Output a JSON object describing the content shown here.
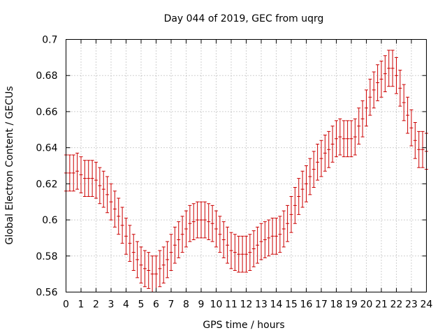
{
  "chart_data": {
    "type": "scatter",
    "title": "Day 044 of 2019, GEC from uqrg",
    "xlabel": "GPS time / hours",
    "ylabel": "Global Electron Content / GECUs",
    "xlim": [
      0,
      24
    ],
    "ylim": [
      0.56,
      0.7
    ],
    "grid": true,
    "x_ticks": [
      0,
      1,
      2,
      3,
      4,
      5,
      6,
      7,
      8,
      9,
      10,
      11,
      12,
      13,
      14,
      15,
      16,
      17,
      18,
      19,
      20,
      21,
      22,
      23,
      24
    ],
    "y_ticks": [
      "0.56",
      "0.58",
      "0.6",
      "0.62",
      "0.64",
      "0.66",
      "0.68",
      "0.7"
    ],
    "error": 0.01,
    "series": [
      {
        "color": "#cc0000",
        "points": [
          [
            0.0,
            0.626
          ],
          [
            0.25,
            0.626
          ],
          [
            0.5,
            0.626
          ],
          [
            0.75,
            0.627
          ],
          [
            1.0,
            0.625
          ],
          [
            1.25,
            0.623
          ],
          [
            1.5,
            0.623
          ],
          [
            1.75,
            0.623
          ],
          [
            2.0,
            0.622
          ],
          [
            2.25,
            0.619
          ],
          [
            2.5,
            0.617
          ],
          [
            2.75,
            0.614
          ],
          [
            3.0,
            0.61
          ],
          [
            3.25,
            0.606
          ],
          [
            3.5,
            0.602
          ],
          [
            3.75,
            0.597
          ],
          [
            4.0,
            0.591
          ],
          [
            4.25,
            0.587
          ],
          [
            4.5,
            0.582
          ],
          [
            4.75,
            0.578
          ],
          [
            5.0,
            0.575
          ],
          [
            5.25,
            0.573
          ],
          [
            5.5,
            0.572
          ],
          [
            5.75,
            0.57
          ],
          [
            6.0,
            0.57
          ],
          [
            6.25,
            0.573
          ],
          [
            6.5,
            0.575
          ],
          [
            6.75,
            0.578
          ],
          [
            7.0,
            0.582
          ],
          [
            7.25,
            0.586
          ],
          [
            7.5,
            0.589
          ],
          [
            7.75,
            0.592
          ],
          [
            8.0,
            0.595
          ],
          [
            8.25,
            0.598
          ],
          [
            8.5,
            0.599
          ],
          [
            8.75,
            0.6
          ],
          [
            9.0,
            0.6
          ],
          [
            9.25,
            0.6
          ],
          [
            9.5,
            0.599
          ],
          [
            9.75,
            0.598
          ],
          [
            10.0,
            0.595
          ],
          [
            10.25,
            0.592
          ],
          [
            10.5,
            0.589
          ],
          [
            10.75,
            0.586
          ],
          [
            11.0,
            0.583
          ],
          [
            11.25,
            0.582
          ],
          [
            11.5,
            0.581
          ],
          [
            11.75,
            0.581
          ],
          [
            12.0,
            0.581
          ],
          [
            12.25,
            0.582
          ],
          [
            12.5,
            0.584
          ],
          [
            12.75,
            0.586
          ],
          [
            13.0,
            0.588
          ],
          [
            13.25,
            0.589
          ],
          [
            13.5,
            0.59
          ],
          [
            13.75,
            0.591
          ],
          [
            14.0,
            0.591
          ],
          [
            14.25,
            0.592
          ],
          [
            14.5,
            0.595
          ],
          [
            14.75,
            0.598
          ],
          [
            15.0,
            0.603
          ],
          [
            15.25,
            0.608
          ],
          [
            15.5,
            0.613
          ],
          [
            15.75,
            0.617
          ],
          [
            16.0,
            0.62
          ],
          [
            16.25,
            0.624
          ],
          [
            16.5,
            0.628
          ],
          [
            16.75,
            0.632
          ],
          [
            17.0,
            0.634
          ],
          [
            17.25,
            0.637
          ],
          [
            17.5,
            0.639
          ],
          [
            17.75,
            0.642
          ],
          [
            18.0,
            0.645
          ],
          [
            18.25,
            0.646
          ],
          [
            18.5,
            0.645
          ],
          [
            18.75,
            0.645
          ],
          [
            19.0,
            0.645
          ],
          [
            19.25,
            0.646
          ],
          [
            19.5,
            0.652
          ],
          [
            19.75,
            0.656
          ],
          [
            20.0,
            0.662
          ],
          [
            20.25,
            0.668
          ],
          [
            20.5,
            0.672
          ],
          [
            20.75,
            0.676
          ],
          [
            21.0,
            0.678
          ],
          [
            21.25,
            0.681
          ],
          [
            21.5,
            0.684
          ],
          [
            21.75,
            0.684
          ],
          [
            22.0,
            0.68
          ],
          [
            22.25,
            0.673
          ],
          [
            22.5,
            0.665
          ],
          [
            22.75,
            0.658
          ],
          [
            23.0,
            0.651
          ],
          [
            23.25,
            0.644
          ],
          [
            23.5,
            0.639
          ],
          [
            23.75,
            0.639
          ],
          [
            24.0,
            0.638
          ]
        ]
      }
    ]
  }
}
